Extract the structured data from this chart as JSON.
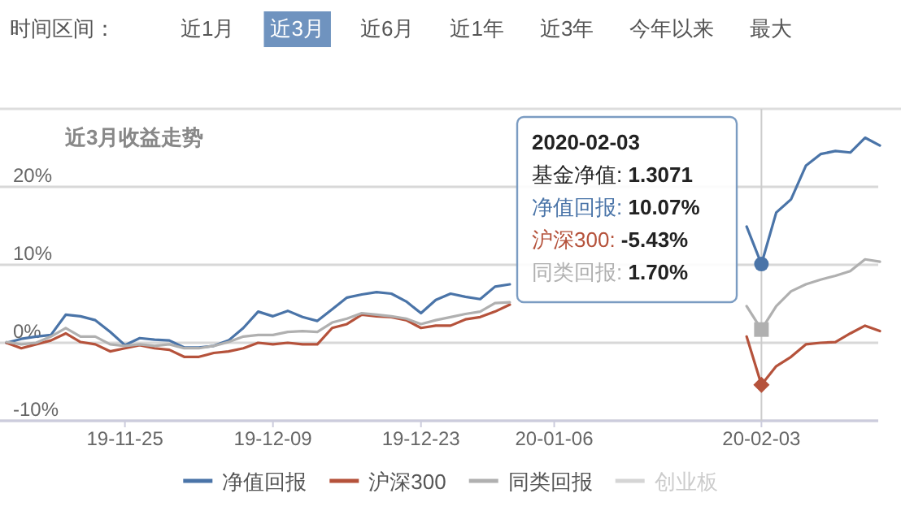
{
  "chart_data": {
    "type": "line",
    "title": "近3月收益走势",
    "categories": [
      null,
      null,
      null,
      null,
      null,
      null,
      null,
      null,
      "19-11-25",
      null,
      null,
      null,
      null,
      null,
      null,
      null,
      null,
      null,
      "19-12-09",
      null,
      null,
      null,
      null,
      null,
      null,
      null,
      null,
      null,
      "19-12-23",
      null,
      null,
      null,
      null,
      null,
      null,
      null,
      null,
      "20-01-06",
      null,
      null,
      null,
      null,
      null,
      null,
      null,
      null,
      null,
      null,
      null,
      null,
      null,
      "20-02-03",
      null,
      null,
      null,
      null,
      null,
      null,
      null,
      null
    ],
    "series": [
      {
        "name": "净值回报",
        "color": "#4a74a8",
        "values": [
          0,
          0.5,
          0.8,
          1.0,
          3.6,
          3.4,
          2.9,
          1.4,
          -0.3,
          0.6,
          0.4,
          0.3,
          -0.6,
          -0.6,
          -0.4,
          0.3,
          1.9,
          4.0,
          3.4,
          4.1,
          3.3,
          2.8,
          4.3,
          5.8,
          6.2,
          6.5,
          6.3,
          5.3,
          3.8,
          5.5,
          6.3,
          5.9,
          5.6,
          7.2,
          7.5,
          null,
          null,
          null,
          null,
          null,
          null,
          null,
          null,
          null,
          null,
          null,
          null,
          null,
          null,
          null,
          14.9,
          10.1,
          16.7,
          18.4,
          22.7,
          24.2,
          24.6,
          24.4,
          26.3,
          25.3
        ]
      },
      {
        "name": "沪深300",
        "color": "#b5523b",
        "values": [
          0,
          -0.7,
          -0.2,
          0.3,
          1.2,
          0.1,
          -0.2,
          -1.1,
          -0.7,
          -0.3,
          -0.7,
          -0.9,
          -1.8,
          -1.8,
          -1.3,
          -1.1,
          -0.7,
          0,
          -0.2,
          0,
          -0.2,
          -0.2,
          1.9,
          2.4,
          3.6,
          3.4,
          3.3,
          2.9,
          1.9,
          2.2,
          2.2,
          3.0,
          3.3,
          4.0,
          4.9,
          null,
          null,
          null,
          null,
          null,
          null,
          null,
          null,
          null,
          null,
          null,
          null,
          null,
          null,
          null,
          0.8,
          -5.4,
          -3.0,
          -1.8,
          -0.2,
          0,
          0.1,
          1.2,
          2.2,
          1.5
        ]
      },
      {
        "name": "同类回报",
        "color": "#b0b0b0",
        "values": [
          0.1,
          -0.2,
          0,
          0.8,
          1.9,
          0.8,
          0.8,
          -0.2,
          -0.4,
          -0.2,
          -0.4,
          -0.2,
          -0.7,
          -0.7,
          -0.4,
          0.1,
          0.8,
          1.0,
          1.0,
          1.4,
          1.5,
          1.4,
          2.6,
          3.1,
          3.8,
          3.6,
          3.4,
          3.1,
          2.4,
          2.9,
          3.3,
          3.7,
          4.0,
          5.1,
          5.2,
          null,
          null,
          null,
          null,
          null,
          null,
          null,
          null,
          null,
          null,
          null,
          null,
          null,
          null,
          null,
          4.7,
          1.7,
          4.7,
          6.6,
          7.5,
          8.1,
          8.6,
          9.2,
          10.7,
          10.4
        ]
      },
      {
        "name": "创业板",
        "color": "#d5d5d5",
        "values": [
          null,
          null,
          null,
          null,
          null,
          null,
          null,
          null,
          null,
          null,
          null,
          null,
          null,
          null,
          null,
          null,
          null,
          null,
          null,
          null,
          null,
          null,
          null,
          null,
          null,
          null,
          null,
          null,
          null,
          null,
          null,
          null,
          null,
          null,
          null,
          null,
          null,
          null,
          null,
          null,
          null,
          null,
          null,
          null,
          null,
          null,
          null,
          null,
          null,
          null,
          null,
          null,
          null,
          null,
          null,
          null,
          null,
          null,
          null,
          null
        ]
      }
    ],
    "ylim": [
      -10,
      30
    ],
    "yticks": [
      {
        "value": -10,
        "label": "-10%"
      },
      {
        "value": 0,
        "label": "0%"
      },
      {
        "value": 10,
        "label": "10%"
      },
      {
        "value": 20,
        "label": "20%"
      }
    ],
    "grid": "y",
    "legend": "bottom",
    "ref_lines": [
      {
        "axis": "x",
        "value": "20-02-03",
        "color": "#cccccc"
      }
    ],
    "annotations": [
      "时间区间：",
      "近1月",
      "近3月",
      "近6月",
      "近1年",
      "近3年",
      "今年以来",
      "最大",
      "2020-02-03",
      "基金净值: 1.3071",
      "净值回报: 10.07%",
      "沪深300: -5.43%",
      "同类回报: 1.70%"
    ]
  }
}
